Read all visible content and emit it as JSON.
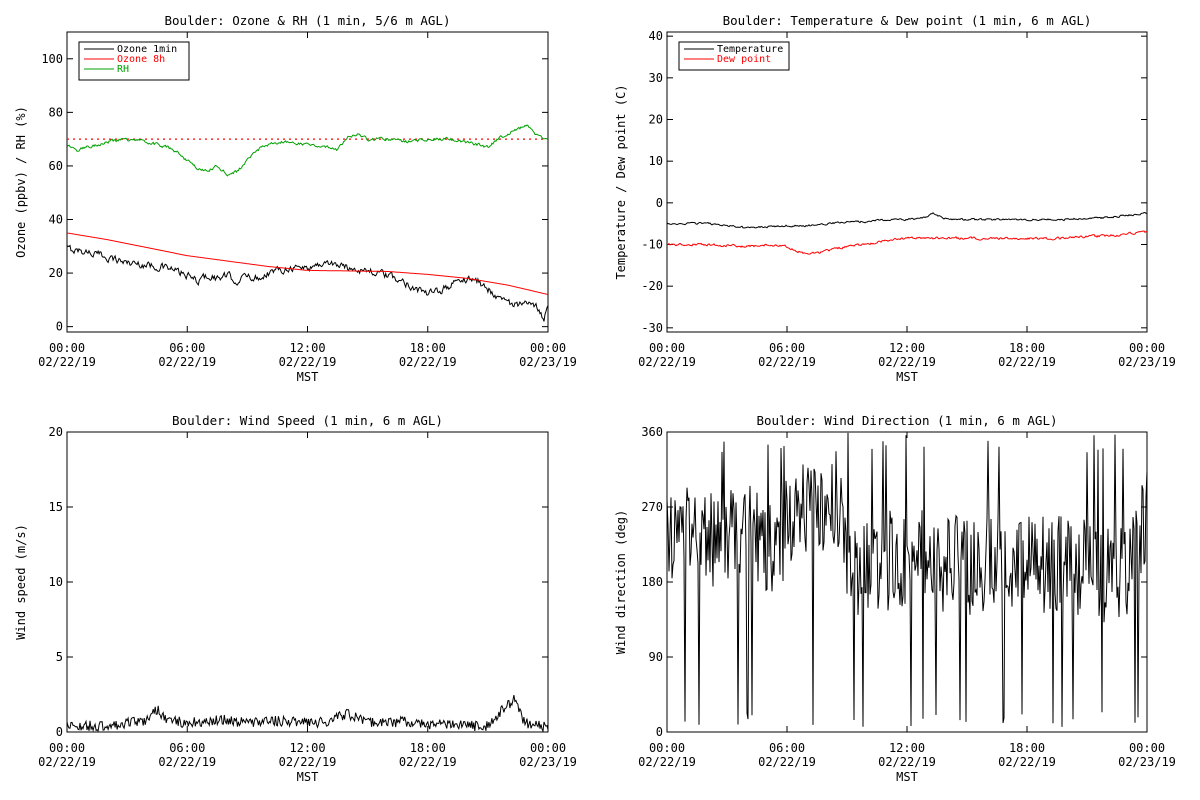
{
  "chart_data": [
    {
      "type": "line",
      "title": "Boulder: Ozone & RH (1 min, 5/6 m AGL)",
      "xlabel": "MST",
      "ylabel": "Ozone (ppbv) / RH (%)",
      "x_tick_labels": [
        [
          "00:00",
          "02/22/19"
        ],
        [
          "06:00",
          "02/22/19"
        ],
        [
          "12:00",
          "02/22/19"
        ],
        [
          "18:00",
          "02/22/19"
        ],
        [
          "00:00",
          "02/23/19"
        ]
      ],
      "xlim_hours": [
        0,
        24
      ],
      "ylim": [
        -2,
        110
      ],
      "y_ticks": [
        0,
        20,
        40,
        60,
        80,
        100
      ],
      "legend_position": "top-left",
      "reference_lines": [
        {
          "y": 70,
          "style": "dotted",
          "color": "#ff0000"
        }
      ],
      "series": [
        {
          "name": "Ozone 1min",
          "color": "#000000",
          "noise": 1.2,
          "x": [
            0,
            1,
            2,
            3,
            4,
            5,
            6,
            6.5,
            7,
            7.5,
            8,
            8.5,
            9,
            9.5,
            10,
            11,
            12,
            13,
            14,
            15,
            16,
            17,
            17.5,
            18,
            18.5,
            19,
            19.5,
            20,
            20.5,
            21,
            22,
            22.5,
            23,
            23.5,
            23.8,
            24
          ],
          "values": [
            29,
            28,
            26,
            24,
            23,
            22,
            19,
            17,
            19,
            18,
            19,
            17,
            19,
            18,
            20,
            22,
            22,
            24,
            22,
            21,
            19,
            16,
            14,
            12,
            13,
            15,
            17,
            18,
            17,
            14,
            9,
            8,
            8,
            7,
            3,
            9
          ]
        },
        {
          "name": "Ozone 8h",
          "color": "#ff0000",
          "noise": 0,
          "x": [
            0,
            2,
            4,
            6,
            8,
            10,
            12,
            14,
            16,
            18,
            20,
            22,
            24
          ],
          "values": [
            35,
            32.5,
            29.5,
            26.5,
            24.5,
            22.5,
            21,
            20.8,
            20.6,
            19.5,
            18,
            15.5,
            12
          ]
        },
        {
          "name": "RH",
          "color": "#00a000",
          "noise": 0.5,
          "x": [
            0,
            0.5,
            1,
            2,
            3,
            4,
            5,
            5.5,
            6,
            6.5,
            7,
            7.5,
            8,
            8.5,
            9,
            9.5,
            10,
            11,
            12,
            13,
            13.5,
            14,
            14.5,
            15,
            16,
            17,
            18,
            19,
            20,
            20.5,
            21,
            21.5,
            22,
            22.5,
            23,
            23.5,
            24
          ],
          "values": [
            68,
            66,
            67,
            69,
            70,
            69,
            67,
            65,
            62,
            59,
            58,
            60,
            57,
            58,
            62,
            66,
            68,
            69,
            68,
            67,
            66,
            71,
            72,
            70,
            70,
            69,
            70,
            70,
            69,
            68,
            67,
            70,
            72,
            74,
            75,
            71,
            70
          ]
        }
      ]
    },
    {
      "type": "line",
      "title": "Boulder: Temperature & Dew point (1 min, 6 m AGL)",
      "xlabel": "MST",
      "ylabel": "Temperature / Dew point (C)",
      "x_tick_labels": [
        [
          "00:00",
          "02/22/19"
        ],
        [
          "06:00",
          "02/22/19"
        ],
        [
          "12:00",
          "02/22/19"
        ],
        [
          "18:00",
          "02/22/19"
        ],
        [
          "00:00",
          "02/23/19"
        ]
      ],
      "xlim_hours": [
        0,
        24
      ],
      "ylim": [
        -31,
        41
      ],
      "y_ticks": [
        -30,
        -20,
        -10,
        0,
        10,
        20,
        30,
        40
      ],
      "legend_position": "top-left",
      "series": [
        {
          "name": "Temperature",
          "color": "#000000",
          "noise": 0.2,
          "x": [
            0,
            2,
            3,
            4,
            6,
            7,
            8,
            9,
            10,
            11,
            12,
            13,
            13.3,
            14,
            16,
            18,
            20,
            22,
            23,
            24
          ],
          "values": [
            -5,
            -5,
            -5.5,
            -6,
            -5.5,
            -5.5,
            -5,
            -4.5,
            -4.5,
            -4,
            -4,
            -3.5,
            -2.5,
            -4,
            -4,
            -4,
            -4,
            -3.5,
            -3,
            -2.5
          ]
        },
        {
          "name": "Dew point",
          "color": "#ff0000",
          "noise": 0.25,
          "x": [
            0,
            2,
            4,
            5,
            6,
            6.5,
            7,
            7.5,
            8,
            9,
            10,
            11,
            12,
            14,
            16,
            18,
            20,
            21,
            22,
            23,
            24
          ],
          "values": [
            -10,
            -10,
            -10.5,
            -10,
            -10.5,
            -11.5,
            -12.5,
            -12,
            -11.5,
            -10.5,
            -10,
            -9,
            -8.5,
            -8.5,
            -8.5,
            -8.5,
            -8.5,
            -8,
            -8,
            -7.5,
            -7
          ]
        }
      ]
    },
    {
      "type": "line",
      "title": "Boulder: Wind Speed (1 min, 6 m AGL)",
      "xlabel": "MST",
      "ylabel": "Wind speed (m/s)",
      "x_tick_labels": [
        [
          "00:00",
          "02/22/19"
        ],
        [
          "06:00",
          "02/22/19"
        ],
        [
          "12:00",
          "02/22/19"
        ],
        [
          "18:00",
          "02/22/19"
        ],
        [
          "00:00",
          "02/23/19"
        ]
      ],
      "xlim_hours": [
        0,
        24
      ],
      "ylim": [
        0,
        20
      ],
      "y_ticks": [
        0,
        5,
        10,
        15,
        20
      ],
      "series": [
        {
          "color": "#000000",
          "noise": 0.35,
          "x": [
            0,
            1,
            2,
            3,
            4,
            4.5,
            5,
            6,
            7,
            8,
            9,
            10,
            11,
            12,
            13,
            14,
            15,
            16,
            17,
            18,
            19,
            20,
            21,
            21.5,
            22,
            22.3,
            22.7,
            23,
            24
          ],
          "values": [
            0.5,
            0.4,
            0.4,
            0.6,
            0.8,
            1.5,
            0.8,
            0.6,
            0.7,
            0.8,
            0.6,
            0.8,
            0.7,
            0.6,
            0.7,
            1.2,
            0.7,
            0.6,
            0.7,
            0.5,
            0.5,
            0.4,
            0.4,
            1.2,
            1.8,
            2.2,
            1.0,
            0.5,
            0.3
          ]
        }
      ]
    },
    {
      "type": "line",
      "title": "Boulder: Wind Direction (1 min, 6 m AGL)",
      "xlabel": "MST",
      "ylabel": "Wind direction (deg)",
      "x_tick_labels": [
        [
          "00:00",
          "02/22/19"
        ],
        [
          "06:00",
          "02/22/19"
        ],
        [
          "12:00",
          "02/22/19"
        ],
        [
          "18:00",
          "02/22/19"
        ],
        [
          "00:00",
          "02/23/19"
        ]
      ],
      "xlim_hours": [
        0,
        24
      ],
      "ylim": [
        0,
        360
      ],
      "y_ticks": [
        0,
        90,
        180,
        270,
        360
      ],
      "series": [
        {
          "color": "#000000",
          "noise": 60,
          "x": [
            0,
            2,
            4,
            5,
            5.5,
            6,
            7,
            8,
            8.5,
            9,
            10,
            12,
            14,
            16,
            18,
            20,
            21,
            22,
            23,
            23.5,
            24
          ],
          "values": [
            240,
            230,
            240,
            220,
            200,
            260,
            275,
            270,
            280,
            200,
            200,
            210,
            200,
            200,
            200,
            200,
            200,
            190,
            195,
            230,
            260
          ]
        }
      ]
    }
  ]
}
